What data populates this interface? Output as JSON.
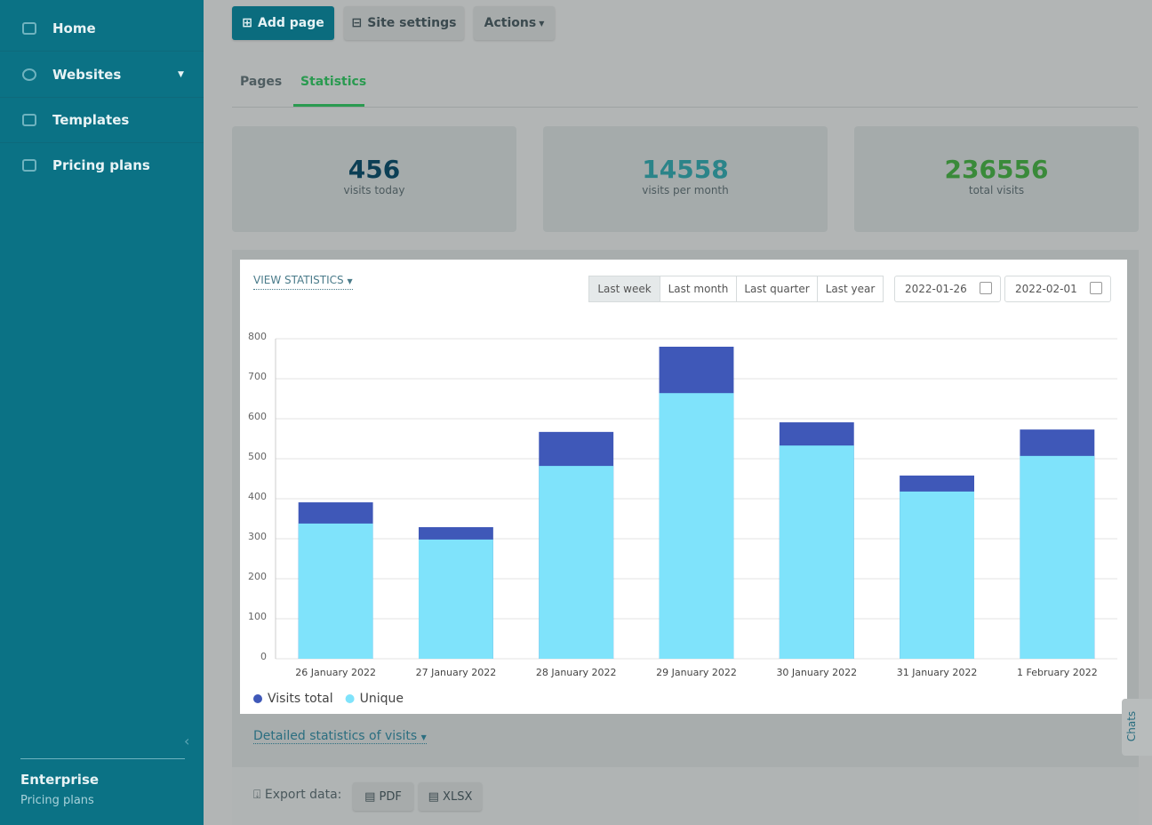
{
  "sidebar": {
    "nav": [
      "Home",
      "Websites",
      "Templates",
      "Pricing plans"
    ],
    "plan": "Enterprise",
    "plan_link": "Pricing plans"
  },
  "toolbar": {
    "buttons": [
      "Add page",
      "Site settings",
      "Actions"
    ]
  },
  "tabs": [
    "Pages",
    "Statistics"
  ],
  "stats": [
    {
      "value": "456",
      "label": "visits today"
    },
    {
      "value": "14558",
      "label": "visits per month"
    },
    {
      "value": "236556",
      "label": "total visits"
    }
  ],
  "panel": {
    "view_statistics": "VIEW STATISTICS",
    "ranges": [
      "Last week",
      "Last month",
      "Last quarter",
      "Last year"
    ],
    "dates": [
      "2022-01-26",
      "2022-02-01"
    ]
  },
  "chart_data": {
    "type": "bar",
    "categories": [
      "26 January 2022",
      "27 January 2022",
      "28 January 2022",
      "29 January 2022",
      "30 January 2022",
      "31 January 2022",
      "1 February 2022"
    ],
    "series": [
      {
        "name": "Visits total",
        "color": "#3f58b8",
        "values": [
          391,
          329,
          567,
          780,
          591,
          458,
          573
        ]
      },
      {
        "name": "Unique",
        "color": "#7fe3fb",
        "values": [
          338,
          298,
          482,
          664,
          533,
          418,
          507
        ]
      }
    ],
    "ylim": [
      0,
      800
    ],
    "yticks": [
      0,
      100,
      200,
      300,
      400,
      500,
      600,
      700,
      800
    ],
    "grid": true
  },
  "detailed": "Detailed statistics of visits",
  "export": {
    "label": "Export data:",
    "buttons": [
      "PDF",
      "XLSX"
    ]
  },
  "chats": "Chats"
}
